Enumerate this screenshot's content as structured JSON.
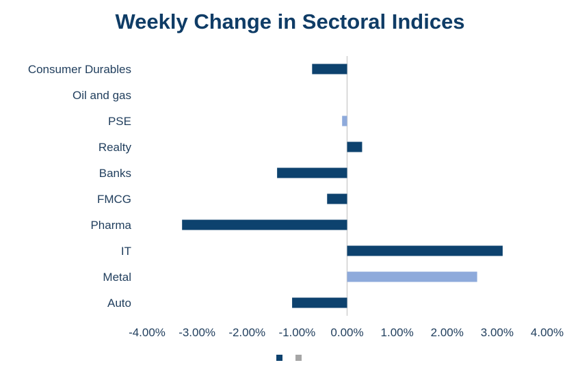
{
  "chart_data": {
    "type": "bar",
    "orientation": "horizontal",
    "title": "Weekly Change in Sectoral Indices",
    "categories": [
      "Consumer Durables",
      "Oil and gas",
      "PSE",
      "Realty",
      "Banks",
      "FMCG",
      "Pharma",
      "IT",
      "Metal",
      "Auto"
    ],
    "values": [
      -0.7,
      0.0,
      -0.1,
      0.3,
      -1.4,
      -0.4,
      -3.3,
      3.11,
      2.6,
      -1.1
    ],
    "highlight": [
      false,
      false,
      true,
      false,
      false,
      false,
      false,
      false,
      true,
      false
    ],
    "xlim": [
      -4,
      4
    ],
    "xticks": [
      "-4.00%",
      "-3.00%",
      "-2.00%",
      "-1.00%",
      "0.00%",
      "1.00%",
      "2.00%",
      "3.00%",
      "4.00%"
    ],
    "xlabel": "",
    "ylabel": "",
    "grid": false,
    "legend": "bottom",
    "colors": {
      "primary": "#0d426e",
      "highlight": "#8eaadb",
      "legend2": "#a6a6a6",
      "axis": "#d0d0d0"
    }
  }
}
